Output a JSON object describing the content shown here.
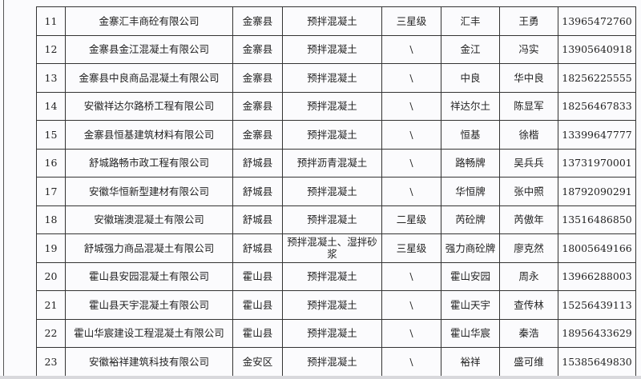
{
  "rows": [
    {
      "no": "11",
      "company": "金寨汇丰商砼有限公司",
      "county": "金寨县",
      "product": "预拌混凝土",
      "grade": "三星级",
      "brand": "汇丰",
      "contact": "王勇",
      "phone": "13965472760"
    },
    {
      "no": "12",
      "company": "金寨县金江混凝土有限公司",
      "county": "金寨县",
      "product": "预拌混凝土",
      "grade": "\\",
      "brand": "金江",
      "contact": "冯实",
      "phone": "13905640918"
    },
    {
      "no": "13",
      "company": "金寨县中良商品混凝土有限公司",
      "county": "金寨县",
      "product": "预拌混凝土",
      "grade": "\\",
      "brand": "中良",
      "contact": "华中良",
      "phone": "18256225555"
    },
    {
      "no": "14",
      "company": "安徽祥达尔路桥工程有限公司",
      "county": "金寨县",
      "product": "预拌混凝土",
      "grade": "\\",
      "brand": "祥达尔土",
      "contact": "陈显军",
      "phone": "18256467833"
    },
    {
      "no": "15",
      "company": "金寨县恒基建筑材料有限公司",
      "county": "金寨县",
      "product": "预拌混凝土",
      "grade": "\\",
      "brand": "恒基",
      "contact": "徐楷",
      "phone": "13399647777"
    },
    {
      "no": "16",
      "company": "舒城路畅市政工程有限公司",
      "county": "舒城县",
      "product": "预拌沥青混凝土",
      "grade": "\\",
      "brand": "路畅牌",
      "contact": "吴兵兵",
      "phone": "13731970001"
    },
    {
      "no": "17",
      "company": "安徽华恒新型建材有限公司",
      "county": "舒城县",
      "product": "预拌混凝土",
      "grade": "\\",
      "brand": "华恒牌",
      "contact": "张中照",
      "phone": "18792090291"
    },
    {
      "no": "18",
      "company": "安徽瑞澳混凝土有限公司",
      "county": "舒城县",
      "product": "预拌混凝土",
      "grade": "二星级",
      "brand": "芮砼牌",
      "contact": "芮傲年",
      "phone": "13516486850"
    },
    {
      "no": "19",
      "company": "舒城强力商品混凝土有限公司",
      "county": "舒城县",
      "product": "预拌混凝土、湿拌砂浆",
      "grade": "三星级",
      "brand": "强力商砼牌",
      "contact": "廖克然",
      "phone": "18005649166"
    },
    {
      "no": "20",
      "company": "霍山县安园混凝土有限公司",
      "county": "霍山县",
      "product": "预拌混凝土",
      "grade": "\\",
      "brand": "霍山安园",
      "contact": "周永",
      "phone": "13966288003"
    },
    {
      "no": "21",
      "company": "霍山县天宇混凝土有限公司",
      "county": "霍山县",
      "product": "预拌混凝土",
      "grade": "\\",
      "brand": "霍山天宇",
      "contact": "查传林",
      "phone": "15256439113"
    },
    {
      "no": "22",
      "company": "霍山华宸建设工程混凝土有限公司",
      "county": "霍山县",
      "product": "预拌混凝土",
      "grade": "\\",
      "brand": "霍山华宸",
      "contact": "秦浩",
      "phone": "18956433629"
    },
    {
      "no": "23",
      "company": "安徽裕祥建筑科技有限公司",
      "county": "金安区",
      "product": "预拌混凝土",
      "grade": "\\",
      "brand": "裕祥",
      "contact": "盛可维",
      "phone": "15385649830"
    }
  ]
}
